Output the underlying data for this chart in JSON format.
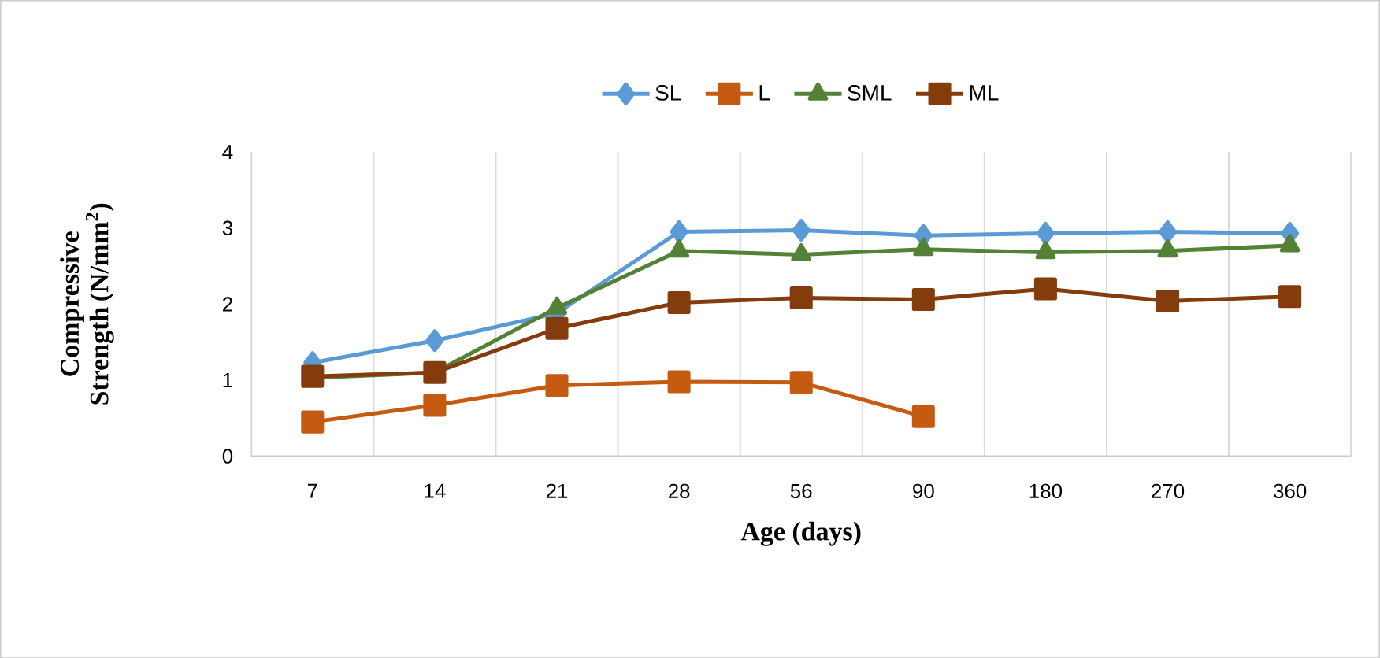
{
  "chart_data": {
    "type": "line",
    "xlabel": "Age (days)",
    "ylabel": "Compressive Strength (N/mm$^{2}$)",
    "categories": [
      "7",
      "14",
      "21",
      "28",
      "56",
      "90",
      "180",
      "270",
      "360"
    ],
    "ylim": [
      0,
      4
    ],
    "yticks": [
      0,
      1,
      2,
      3,
      4
    ],
    "grid": "x",
    "legend": "top",
    "series": [
      {
        "name": "SL",
        "color": "#5b9bd5",
        "marker": "diamond",
        "values": [
          1.23,
          1.52,
          1.88,
          2.95,
          2.97,
          2.9,
          2.93,
          2.95,
          2.93
        ]
      },
      {
        "name": "L",
        "color": "#c55a11",
        "marker": "square",
        "values": [
          0.45,
          0.67,
          0.93,
          0.98,
          0.97,
          0.52,
          null,
          null,
          null
        ]
      },
      {
        "name": "SML",
        "color": "#538135",
        "marker": "triangle",
        "values": [
          1.03,
          1.1,
          1.95,
          2.7,
          2.65,
          2.72,
          2.68,
          2.7,
          2.77
        ]
      },
      {
        "name": "ML",
        "color": "#843c0c",
        "marker": "square",
        "values": [
          1.05,
          1.1,
          1.68,
          2.02,
          2.08,
          2.06,
          2.2,
          2.04,
          2.1
        ]
      }
    ]
  }
}
